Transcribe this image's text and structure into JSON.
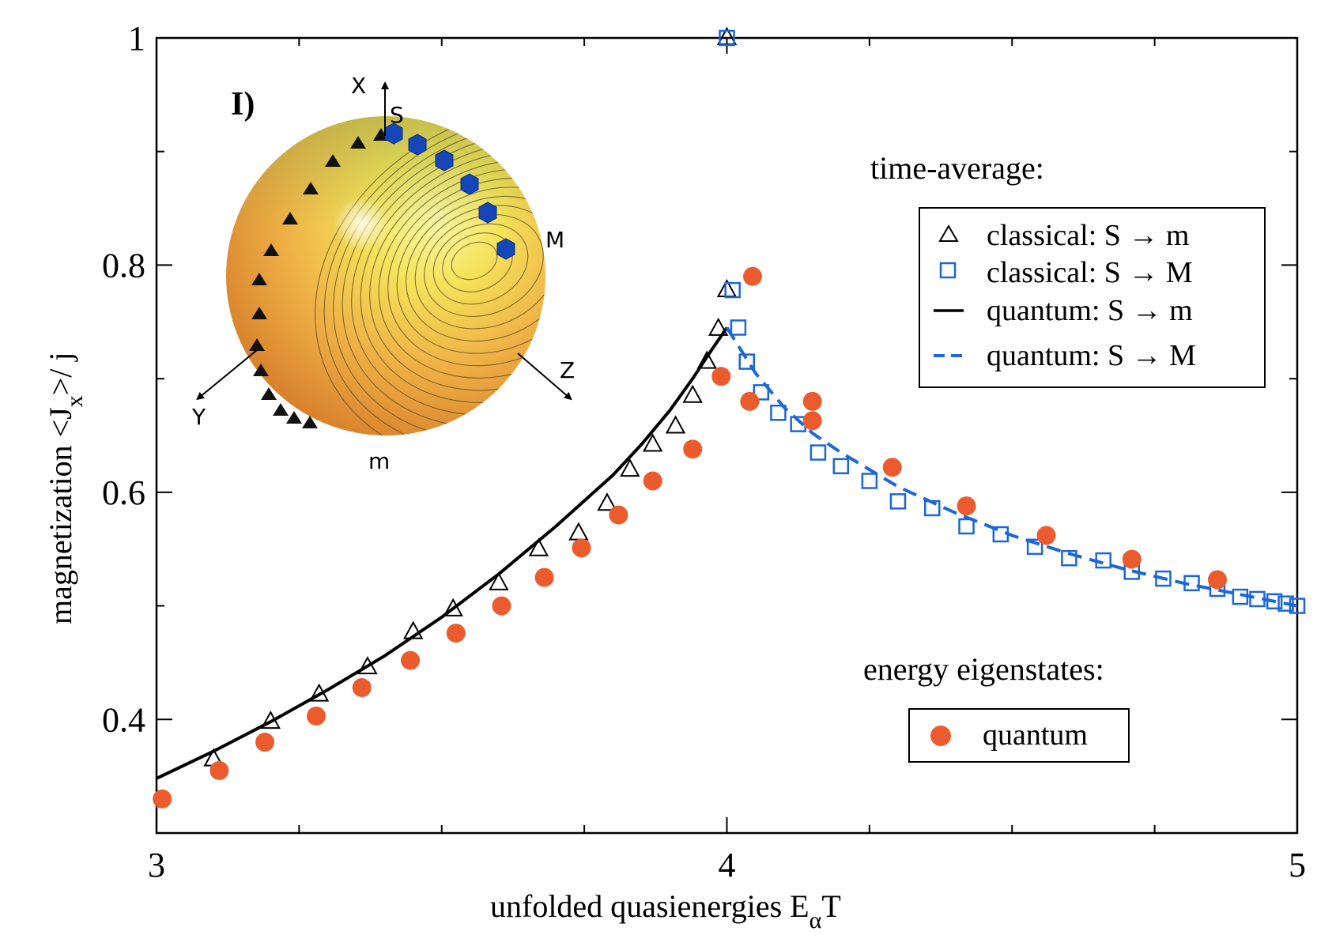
{
  "chart_data": {
    "type": "scatter",
    "xlabel": "unfolded quasienergies E",
    "xlabel_sub": "α",
    "xlabel_tail": "T",
    "ylabel": "magnetization <J",
    "ylabel_sub": "x",
    "ylabel_tail": ">/ j",
    "xlim": [
      3,
      5
    ],
    "ylim": [
      0.3,
      1.0
    ],
    "x_ticks": [
      3,
      4,
      5
    ],
    "x_tick_labels": [
      "3",
      "4",
      "5"
    ],
    "y_ticks": [
      0.4,
      0.6,
      0.8,
      1.0
    ],
    "y_tick_labels": [
      "0.4",
      "0.6",
      "0.8",
      "1"
    ],
    "panel_label": "I)",
    "legend": {
      "time_average_title": "time-average:",
      "energy_title": "energy eigenstates:",
      "entries": [
        "classical: S → m",
        "classical: S → M",
        "quantum: S → m",
        "quantum: S → M"
      ],
      "eigen_entry": "quantum"
    },
    "series": [
      {
        "name": "classical: S → m",
        "marker": "triangle",
        "color": "#000000",
        "points": [
          [
            3.1,
            0.365
          ],
          [
            3.2,
            0.398
          ],
          [
            3.285,
            0.422
          ],
          [
            3.37,
            0.446
          ],
          [
            3.45,
            0.477
          ],
          [
            3.52,
            0.497
          ],
          [
            3.6,
            0.52
          ],
          [
            3.67,
            0.55
          ],
          [
            3.74,
            0.564
          ],
          [
            3.79,
            0.59
          ],
          [
            3.83,
            0.62
          ],
          [
            3.87,
            0.642
          ],
          [
            3.91,
            0.658
          ],
          [
            3.94,
            0.685
          ],
          [
            3.965,
            0.715
          ],
          [
            3.985,
            0.744
          ],
          [
            4.0,
            0.778
          ],
          [
            4.0,
            1.0
          ]
        ]
      },
      {
        "name": "classical: S → M",
        "marker": "square",
        "color": "#1a66dd",
        "points": [
          [
            4.0,
            1.0
          ],
          [
            4.01,
            0.778
          ],
          [
            4.02,
            0.745
          ],
          [
            4.035,
            0.715
          ],
          [
            4.06,
            0.688
          ],
          [
            4.09,
            0.67
          ],
          [
            4.125,
            0.66
          ],
          [
            4.16,
            0.635
          ],
          [
            4.2,
            0.623
          ],
          [
            4.25,
            0.61
          ],
          [
            4.3,
            0.592
          ],
          [
            4.36,
            0.586
          ],
          [
            4.42,
            0.57
          ],
          [
            4.48,
            0.563
          ],
          [
            4.54,
            0.552
          ],
          [
            4.6,
            0.542
          ],
          [
            4.66,
            0.54
          ],
          [
            4.71,
            0.53
          ],
          [
            4.765,
            0.524
          ],
          [
            4.815,
            0.52
          ],
          [
            4.86,
            0.515
          ],
          [
            4.9,
            0.508
          ],
          [
            4.93,
            0.506
          ],
          [
            4.96,
            0.504
          ],
          [
            4.98,
            0.502
          ],
          [
            5.0,
            0.5
          ]
        ]
      },
      {
        "name": "quantum: S → m",
        "line": "solid",
        "color": "#000000",
        "x": [
          3.0,
          3.1,
          3.2,
          3.3,
          3.4,
          3.5,
          3.6,
          3.7,
          3.8,
          3.85,
          3.9,
          3.94,
          3.97,
          4.0
        ],
        "y": [
          0.348,
          0.372,
          0.398,
          0.426,
          0.456,
          0.49,
          0.528,
          0.57,
          0.615,
          0.642,
          0.672,
          0.7,
          0.723,
          0.745
        ]
      },
      {
        "name": "quantum: S → M",
        "line": "dashed",
        "color": "#1a66dd",
        "x": [
          4.0,
          4.05,
          4.1,
          4.15,
          4.2,
          4.3,
          4.4,
          4.5,
          4.6,
          4.7,
          4.8,
          4.9,
          5.0
        ],
        "y": [
          0.745,
          0.705,
          0.675,
          0.652,
          0.635,
          0.605,
          0.582,
          0.562,
          0.546,
          0.532,
          0.52,
          0.51,
          0.5
        ]
      },
      {
        "name": "quantum (energy eigenstates)",
        "marker": "circle",
        "color": "#ec5b2e",
        "points": [
          [
            3.01,
            0.33
          ],
          [
            3.11,
            0.355
          ],
          [
            3.19,
            0.38
          ],
          [
            3.28,
            0.403
          ],
          [
            3.36,
            0.428
          ],
          [
            3.445,
            0.452
          ],
          [
            3.525,
            0.476
          ],
          [
            3.605,
            0.5
          ],
          [
            3.68,
            0.525
          ],
          [
            3.745,
            0.551
          ],
          [
            3.81,
            0.58
          ],
          [
            3.87,
            0.61
          ],
          [
            3.94,
            0.638
          ],
          [
            3.99,
            0.702
          ],
          [
            4.045,
            0.79
          ],
          [
            4.04,
            0.68
          ],
          [
            4.15,
            0.68
          ],
          [
            4.15,
            0.663
          ],
          [
            4.29,
            0.622
          ],
          [
            4.42,
            0.588
          ],
          [
            4.56,
            0.562
          ],
          [
            4.71,
            0.541
          ],
          [
            4.86,
            0.523
          ]
        ]
      }
    ]
  },
  "inset": {
    "axis_x": "X",
    "axis_y": "Y",
    "axis_z": "Z",
    "point_s": "S",
    "point_m_big": "M",
    "point_m_small": "m"
  }
}
